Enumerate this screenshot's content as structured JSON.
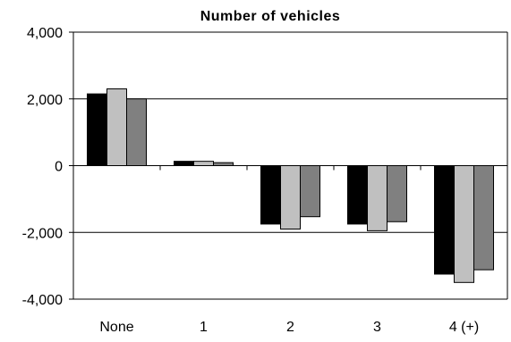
{
  "chart_data": {
    "type": "bar",
    "title": "Number of vehicles",
    "xlabel": "",
    "ylabel": "",
    "categories": [
      "None",
      "1",
      "2",
      "3",
      "4 (+)"
    ],
    "series": [
      {
        "values": [
          2150,
          130,
          -1750,
          -1750,
          -3250
        ],
        "color": "#000000"
      },
      {
        "values": [
          2300,
          130,
          -1900,
          -1950,
          -3500
        ],
        "color": "#c0c0c0"
      },
      {
        "values": [
          2000,
          90,
          -1530,
          -1680,
          -3120
        ],
        "color": "#808080"
      }
    ],
    "ylim": [
      -4000,
      4000
    ],
    "yticks": [
      4000,
      2000,
      0,
      -2000,
      -4000
    ],
    "ytick_labels": [
      "4,000",
      "2,000",
      "0",
      "-2,000",
      "-4,000"
    ],
    "grid": true,
    "legend": "none"
  }
}
